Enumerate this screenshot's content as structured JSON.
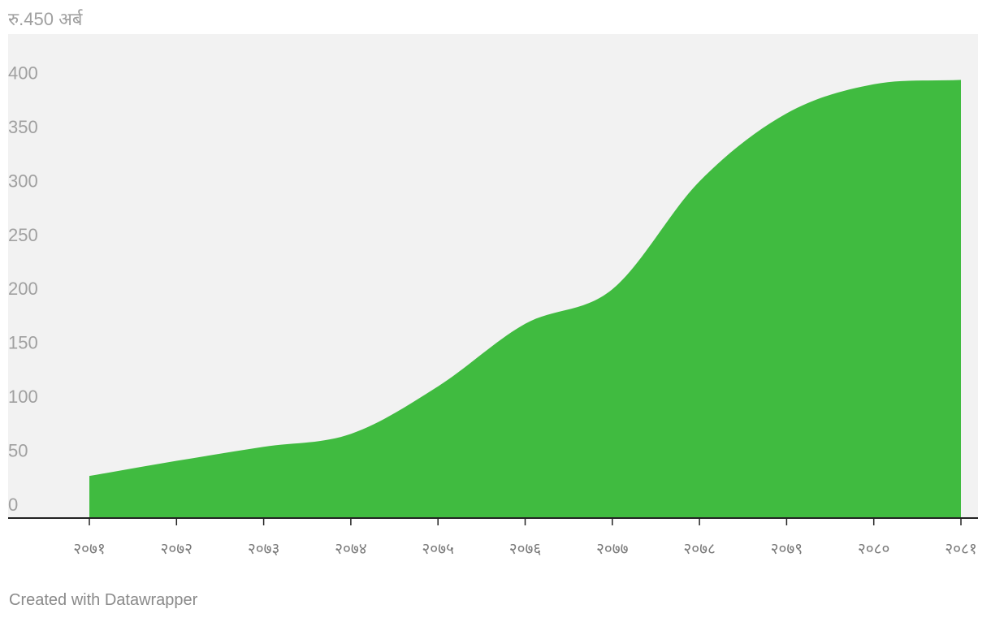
{
  "chart_data": {
    "type": "area",
    "y_unit_label": "रु.450 अर्ब",
    "x": [
      "२०७१",
      "२०७२",
      "२०७३",
      "२०७४",
      "२०७५",
      "२०७६",
      "२०७७",
      "२०७८",
      "२०७९",
      "२०८०",
      "२०८१"
    ],
    "values": [
      39,
      53,
      66,
      78,
      122,
      180,
      212,
      312,
      375,
      402,
      406
    ],
    "yticks": [
      0,
      50,
      100,
      150,
      200,
      250,
      300,
      350,
      400
    ],
    "ytick_labels": [
      "0",
      "50",
      "100",
      "150",
      "200",
      "250",
      "300",
      "350",
      "400"
    ],
    "ylim": [
      0,
      450
    ],
    "grid": false,
    "colors": {
      "area": "#40bb40",
      "plot_background": "#f2f2f2",
      "axis": "#222222"
    }
  },
  "footer": {
    "credit": "Created with Datawrapper"
  }
}
